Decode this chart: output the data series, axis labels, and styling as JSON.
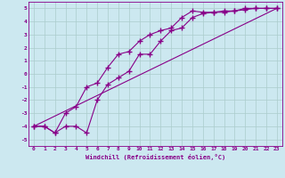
{
  "xlabel": "Windchill (Refroidissement éolien,°C)",
  "xlim": [
    -0.5,
    23.5
  ],
  "ylim": [
    -5.5,
    5.5
  ],
  "xticks": [
    0,
    1,
    2,
    3,
    4,
    5,
    6,
    7,
    8,
    9,
    10,
    11,
    12,
    13,
    14,
    15,
    16,
    17,
    18,
    19,
    20,
    21,
    22,
    23
  ],
  "yticks": [
    -5,
    -4,
    -3,
    -2,
    -1,
    0,
    1,
    2,
    3,
    4,
    5
  ],
  "background_color": "#cce8f0",
  "line_color": "#880088",
  "grid_color": "#aacccc",
  "line1_x": [
    0,
    1,
    2,
    3,
    4,
    5,
    6,
    7,
    8,
    9,
    10,
    11,
    12,
    13,
    14,
    15,
    16,
    17,
    18,
    19,
    20,
    21,
    22,
    23
  ],
  "line1_y": [
    -4.0,
    -4.0,
    -4.5,
    -3.0,
    -2.5,
    -1.0,
    -0.7,
    0.5,
    1.5,
    1.7,
    2.5,
    3.0,
    3.3,
    3.5,
    4.3,
    4.8,
    4.7,
    4.7,
    4.8,
    4.8,
    4.9,
    5.0,
    5.0,
    5.0
  ],
  "line2_x": [
    0,
    1,
    2,
    3,
    4,
    5,
    6,
    7,
    8,
    9,
    10,
    11,
    12,
    13,
    14,
    15,
    16,
    17,
    18,
    19,
    20,
    21,
    22,
    23
  ],
  "line2_y": [
    -4.0,
    -4.0,
    -4.5,
    -4.0,
    -4.0,
    -4.5,
    -2.0,
    -0.8,
    -0.3,
    0.2,
    1.5,
    1.5,
    2.5,
    3.3,
    3.5,
    4.3,
    4.6,
    4.7,
    4.7,
    4.8,
    5.0,
    5.0,
    5.0,
    5.0
  ],
  "line3_x": [
    0,
    23
  ],
  "line3_y": [
    -4.0,
    5.0
  ]
}
